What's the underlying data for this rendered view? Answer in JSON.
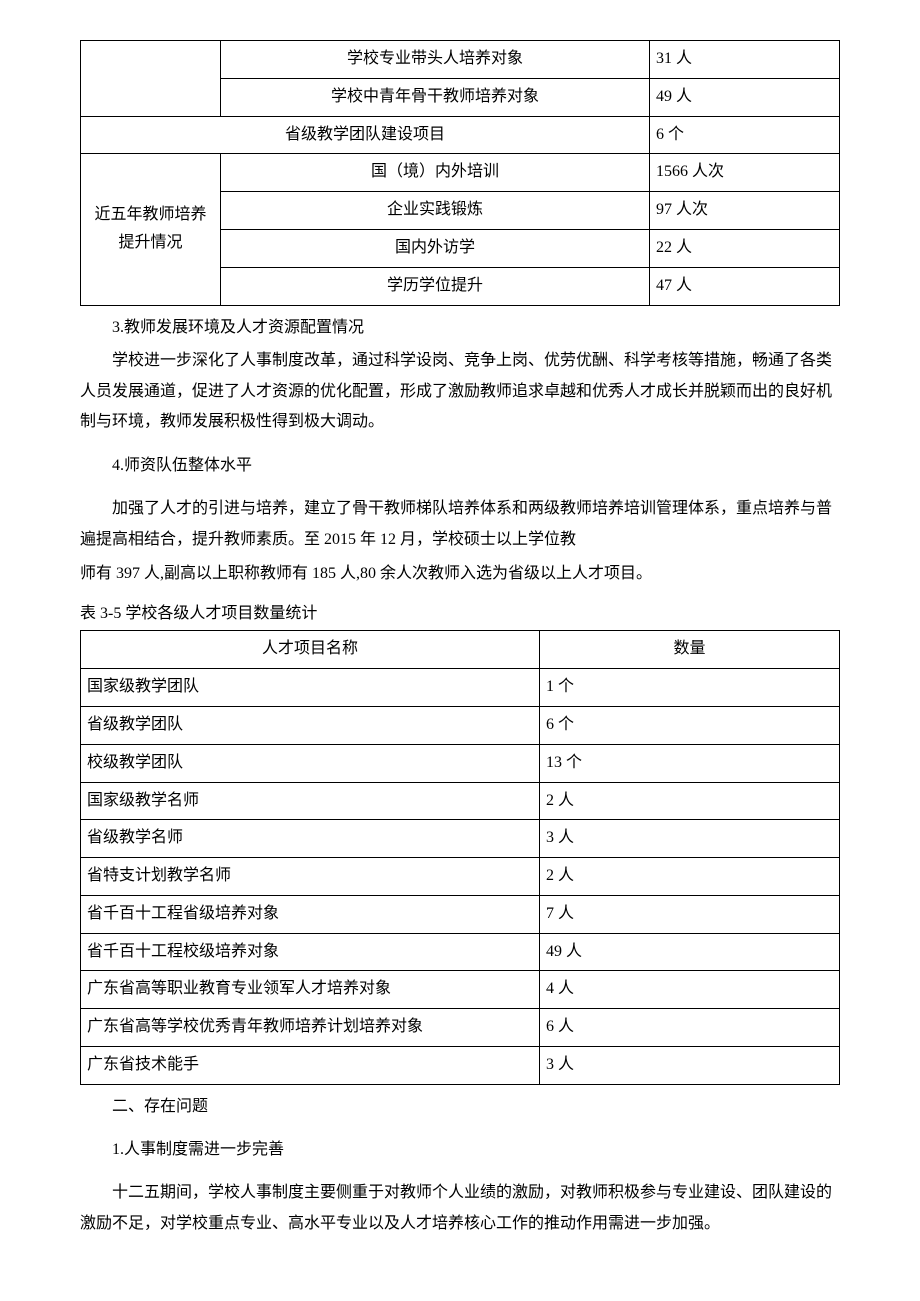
{
  "table1": {
    "rows": [
      {
        "c1": null,
        "c2": "学校专业带头人培养对象",
        "c3": "31 人"
      },
      {
        "c1": null,
        "c2": "学校中青年骨干教师培养对象",
        "c3": "49 人"
      },
      {
        "span12": "省级教学团队建设项目",
        "c3": "6 个"
      },
      {
        "c1": "近五年教师培养提升情况",
        "c2": "国（境）内外培训",
        "c3": "1566 人次"
      },
      {
        "c1": null,
        "c2": "企业实践锻炼",
        "c3": "97 人次"
      },
      {
        "c1": null,
        "c2": "国内外访学",
        "c3": "22 人"
      },
      {
        "c1": null,
        "c2": "学历学位提升",
        "c3": "47 人"
      }
    ]
  },
  "sec3_heading": "3.教师发展环境及人才资源配置情况",
  "sec3_para": "学校进一步深化了人事制度改革，通过科学设岗、竞争上岗、优劳优酬、科学考核等措施，畅通了各类人员发展通道，促进了人才资源的优化配置，形成了激励教师追求卓越和优秀人才成长并脱颖而出的良好机制与环境，教师发展积极性得到极大调动。",
  "sec4_heading": "4.师资队伍整体水平",
  "sec4_para1": "加强了人才的引进与培养，建立了骨干教师梯队培养体系和两级教师培养培训管理体系，重点培养与普遍提高相结合，提升教师素质。至 2015 年 12 月，学校硕士以上学位教",
  "sec4_para2": "师有 397 人,副高以上职称教师有 185 人,80 余人次教师入选为省级以上人才项目。",
  "table2_caption": "表 3-5 学校各级人才项目数量统计",
  "table2": {
    "header": {
      "name": "人才项目名称",
      "qty": "数量"
    },
    "rows": [
      {
        "name": "国家级教学团队",
        "qty": "1 个"
      },
      {
        "name": "省级教学团队",
        "qty": "6 个"
      },
      {
        "name": "校级教学团队",
        "qty": "13 个"
      },
      {
        "name": "国家级教学名师",
        "qty": "2 人"
      },
      {
        "name": "省级教学名师",
        "qty": "3 人"
      },
      {
        "name": "省特支计划教学名师",
        "qty": "2 人"
      },
      {
        "name": "省千百十工程省级培养对象",
        "qty": "7 人"
      },
      {
        "name": "省千百十工程校级培养对象",
        "qty": "49 人"
      },
      {
        "name": "广东省高等职业教育专业领军人才培养对象",
        "qty": "4 人"
      },
      {
        "name": "广东省高等学校优秀青年教师培养计划培养对象",
        "qty": "6 人"
      },
      {
        "name": "广东省技术能手",
        "qty": "3 人"
      }
    ]
  },
  "sec_problems_heading": "二、存在问题",
  "sec_problems_sub1": "1.人事制度需进一步完善",
  "sec_problems_para1": "十二五期间，学校人事制度主要侧重于对教师个人业绩的激励，对教师积极参与专业建设、团队建设的激励不足，对学校重点专业、高水平专业以及人才培养核心工作的推动作用需进一步加强。"
}
